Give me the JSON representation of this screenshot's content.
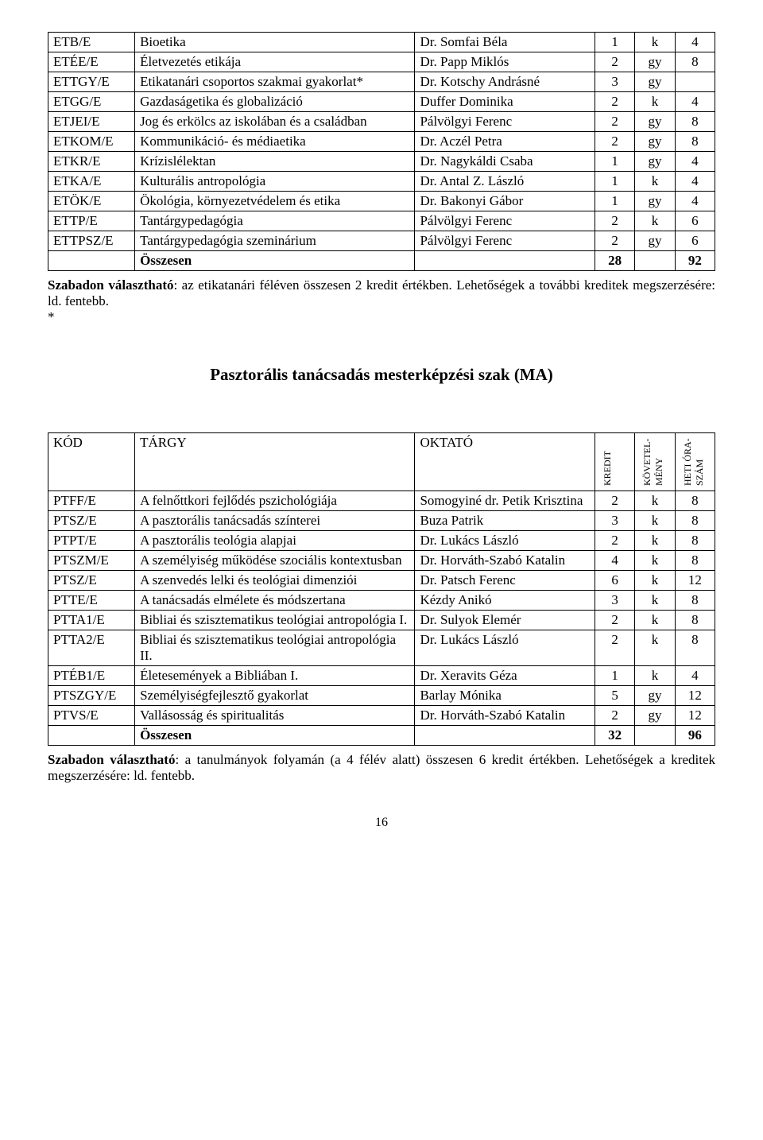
{
  "table1": {
    "rows": [
      {
        "code": "ETB/E",
        "subj": "Bioetika",
        "teacher": "Dr. Somfai Béla",
        "c1": "1",
        "c2": "k",
        "c3": "4"
      },
      {
        "code": "ETÉE/E",
        "subj": "Életvezetés etikája",
        "teacher": "Dr. Papp Miklós",
        "c1": "2",
        "c2": "gy",
        "c3": "8"
      },
      {
        "code": "ETTGY/E",
        "subj": "Etikatanári csoportos szakmai gyakorlat*",
        "teacher": "Dr. Kotschy Andrásné",
        "c1": "3",
        "c2": "gy",
        "c3": ""
      },
      {
        "code": "ETGG/E",
        "subj": "Gazdaságetika és globalizáció",
        "teacher": "Duffer Dominika",
        "c1": "2",
        "c2": "k",
        "c3": "4"
      },
      {
        "code": "ETJEI/E",
        "subj": "Jog és erkölcs az iskolában és a családban",
        "teacher": "Pálvölgyi Ferenc",
        "c1": "2",
        "c2": "gy",
        "c3": "8"
      },
      {
        "code": "ETKOM/E",
        "subj": "Kommunikáció- és médiaetika",
        "teacher": "Dr. Aczél Petra",
        "c1": "2",
        "c2": "gy",
        "c3": "8"
      },
      {
        "code": "ETKR/E",
        "subj": "Krízislélektan",
        "teacher": "Dr. Nagykáldi Csaba",
        "c1": "1",
        "c2": "gy",
        "c3": "4"
      },
      {
        "code": "ETKA/E",
        "subj": "Kulturális antropológia",
        "teacher": "Dr. Antal Z. László",
        "c1": "1",
        "c2": "k",
        "c3": "4"
      },
      {
        "code": "ETÖK/E",
        "subj": "Ökológia, környezetvédelem és etika",
        "teacher": "Dr. Bakonyi Gábor",
        "c1": "1",
        "c2": "gy",
        "c3": "4"
      },
      {
        "code": "ETTP/E",
        "subj": "Tantárgypedagógia",
        "teacher": "Pálvölgyi Ferenc",
        "c1": "2",
        "c2": "k",
        "c3": "6"
      },
      {
        "code": "ETTPSZ/E",
        "subj": "Tantárgypedagógia szeminárium",
        "teacher": "Pálvölgyi Ferenc",
        "c1": "2",
        "c2": "gy",
        "c3": "6"
      }
    ],
    "total_label": "Összesen",
    "total_c1": "28",
    "total_c3": "92"
  },
  "para1_b": "Szabadon választható",
  "para1_rest": ": az etikatanári féléven összesen 2 kredit értékben. Lehetőségek a további kreditek megszerzésére: ld. fentebb.",
  "asterisk": "*",
  "title": "Pasztorális tanácsadás mesterképzési szak (MA)",
  "table2": {
    "h_code": "KÓD",
    "h_subj": "TÁRGY",
    "h_teacher": "OKTATÓ",
    "h_c1": "KREDIT",
    "h_c2": "KÖVETEL-MÉNY",
    "h_c3": "HETI ÓRA-SZÁM",
    "rows": [
      {
        "code": "PTFF/E",
        "subj": "A felnőttkori fejlődés pszichológiája",
        "teacher": "Somogyiné dr. Petik Krisztina",
        "c1": "2",
        "c2": "k",
        "c3": "8"
      },
      {
        "code": "PTSZ/E",
        "subj": "A pasztorális tanácsadás színterei",
        "teacher": "Buza Patrik",
        "c1": "3",
        "c2": "k",
        "c3": "8"
      },
      {
        "code": "PTPT/E",
        "subj": "A pasztorális teológia alapjai",
        "teacher": "Dr. Lukács László",
        "c1": "2",
        "c2": "k",
        "c3": "8"
      },
      {
        "code": "PTSZM/E",
        "subj": "A személyiség működése szociális kontextusban",
        "teacher": "Dr. Horváth-Szabó Katalin",
        "c1": "4",
        "c2": "k",
        "c3": "8"
      },
      {
        "code": "PTSZ/E",
        "subj": "A szenvedés lelki és teológiai dimenziói",
        "teacher": "Dr. Patsch Ferenc",
        "c1": "6",
        "c2": "k",
        "c3": "12"
      },
      {
        "code": "PTTE/E",
        "subj": "A tanácsadás elmélete és módszertana",
        "teacher": "Kézdy Anikó",
        "c1": "3",
        "c2": "k",
        "c3": "8"
      },
      {
        "code": "PTTA1/E",
        "subj": "Bibliai és szisztematikus teológiai antropológia I.",
        "teacher": "Dr. Sulyok Elemér",
        "c1": "2",
        "c2": "k",
        "c3": "8"
      },
      {
        "code": "PTTA2/E",
        "subj": "Bibliai és szisztematikus teológiai antropológia II.",
        "teacher": "Dr. Lukács László",
        "c1": "2",
        "c2": "k",
        "c3": "8"
      },
      {
        "code": "PTÉB1/E",
        "subj": "Életesemények a Bibliában I.",
        "teacher": "Dr. Xeravits Géza",
        "c1": "1",
        "c2": "k",
        "c3": "4"
      },
      {
        "code": "PTSZGY/E",
        "subj": "Személyiségfejlesztő gyakorlat",
        "teacher": "Barlay Mónika",
        "c1": "5",
        "c2": "gy",
        "c3": "12"
      },
      {
        "code": "PTVS/E",
        "subj": "Vallásosság és spiritualitás",
        "teacher": "Dr. Horváth-Szabó Katalin",
        "c1": "2",
        "c2": "gy",
        "c3": "12"
      }
    ],
    "total_label": "Összesen",
    "total_c1": "32",
    "total_c3": "96"
  },
  "para2_b": "Szabadon választható",
  "para2_rest": ": a tanulmányok folyamán (a 4 félév alatt) összesen 6 kredit értékben. Lehetőségek a kreditek megszerzésére: ld. fentebb.",
  "pagenum": "16"
}
